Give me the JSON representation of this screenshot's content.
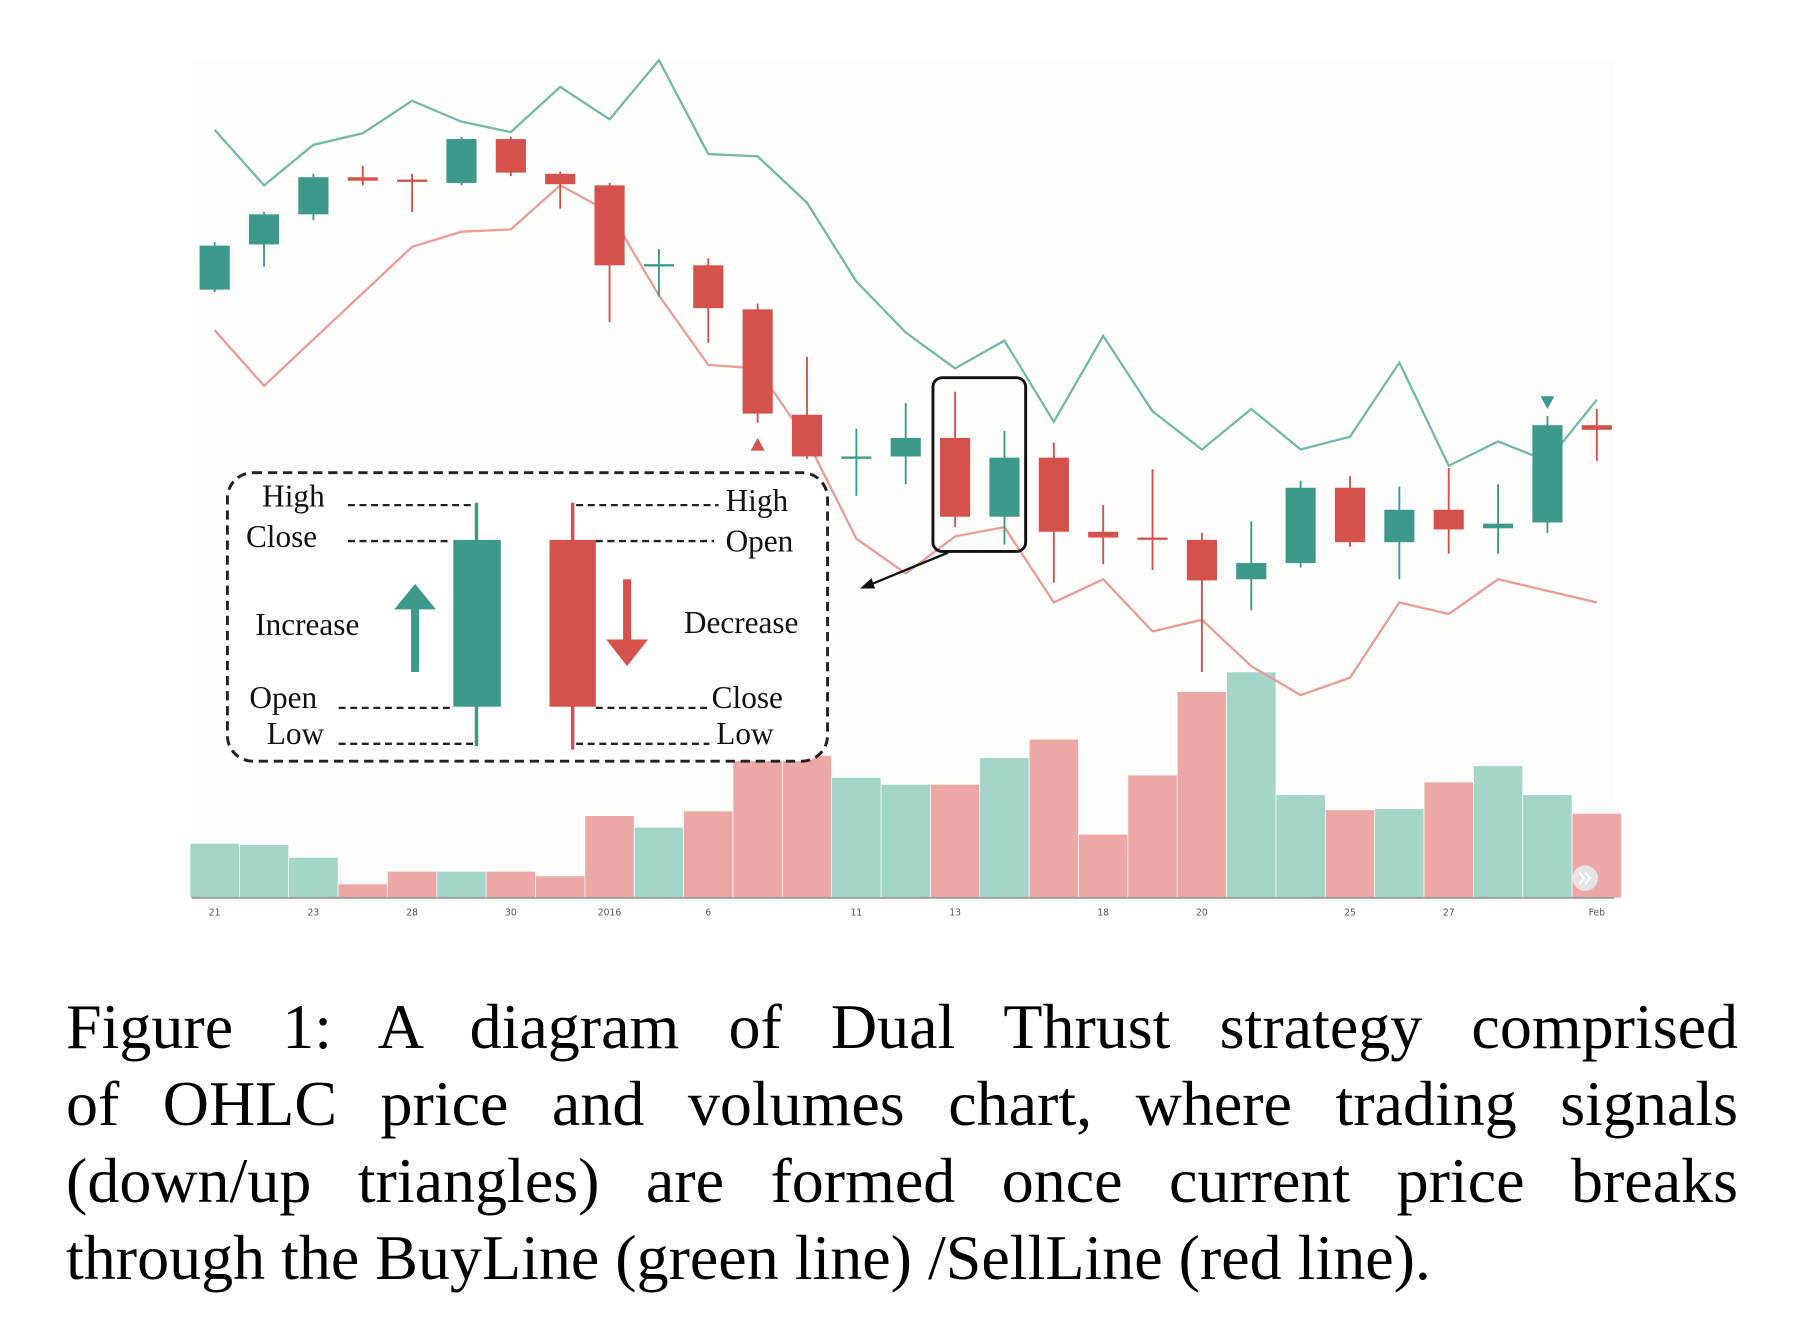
{
  "chart_data": {
    "type": "candlestick",
    "categories": [
      "21",
      null,
      "23",
      null,
      "28",
      null,
      "30",
      null,
      "2016",
      null,
      "6",
      null,
      null,
      "11",
      null,
      "13",
      null,
      null,
      "18",
      null,
      "20",
      null,
      null,
      "25",
      null,
      "27",
      null,
      null,
      "Feb"
    ],
    "open": [
      70,
      77.8,
      83,
      89.4,
      89,
      88.4,
      96,
      90,
      88,
      74,
      74.2,
      66.6,
      48.4,
      40.8,
      41.2,
      44.4,
      30.8,
      41,
      28.2,
      27.2,
      26.8,
      20,
      22.8,
      35.8,
      26.4,
      32,
      28.8,
      29.8,
      46.6
    ],
    "high": [
      78.2,
      83.4,
      90,
      91.4,
      90,
      96.4,
      96.4,
      90.4,
      88.4,
      77,
      75.4,
      67.6,
      58.4,
      46,
      50.4,
      52.4,
      45.6,
      43.6,
      32.8,
      39,
      28,
      30,
      37,
      37.8,
      36,
      39.2,
      36.4,
      48.2,
      49.4
    ],
    "low": [
      69.6,
      74,
      82,
      88,
      83.4,
      88,
      89.6,
      84,
      64.4,
      68.8,
      60.8,
      47,
      40.8,
      34.4,
      36.4,
      29,
      26,
      19.4,
      22.6,
      21.6,
      4,
      14.6,
      22,
      25.6,
      20,
      24.4,
      24.4,
      28,
      40.4
    ],
    "close": [
      77.6,
      83,
      89.4,
      88.8,
      88.6,
      96,
      90.2,
      88.2,
      74.2,
      74.4,
      66.8,
      48.6,
      41.2,
      41.2,
      44.4,
      30.8,
      41,
      28.2,
      27.2,
      26.8,
      19.8,
      22.8,
      35.8,
      26.4,
      32,
      28.6,
      29.6,
      46.6,
      45.8
    ],
    "increase_color": "#3d9a8b",
    "decrease_color": "#d4524b",
    "ylim": [
      0,
      110
    ],
    "buy_line": {
      "color": "#74b8aa",
      "values": [
        97.6,
        88,
        95,
        97,
        102.6,
        99,
        97.2,
        105,
        99.4,
        109.6,
        93.4,
        93,
        85,
        71.4,
        62.6,
        56.4,
        61.2,
        47.2,
        62,
        49,
        42.4,
        49.4,
        42.4,
        44.6,
        57.4,
        39.6,
        43.8,
        40.4,
        51
      ]
    },
    "sell_line": {
      "color": "#eb9d95",
      "values": [
        63,
        53.4,
        61.4,
        69.4,
        77.4,
        80,
        80.4,
        88,
        83.4,
        69,
        57,
        56.4,
        44,
        27,
        21,
        27.4,
        29,
        16,
        20,
        11,
        13,
        5,
        0,
        3,
        16,
        14,
        20,
        18,
        16
      ]
    },
    "signals": [
      {
        "shape": "triangle-up",
        "color": "#d4524b",
        "values": [
          null,
          null,
          null,
          null,
          null,
          null,
          null,
          null,
          null,
          null,
          null,
          43.2,
          null,
          null,
          null,
          null,
          null,
          null,
          null,
          null,
          null,
          null,
          null,
          null,
          null,
          null,
          null,
          null,
          null
        ]
      },
      {
        "shape": "triangle-down",
        "color": "#3d9a8b",
        "values": [
          null,
          null,
          null,
          null,
          null,
          null,
          null,
          null,
          null,
          null,
          null,
          null,
          null,
          null,
          null,
          null,
          null,
          null,
          null,
          null,
          null,
          null,
          null,
          null,
          null,
          null,
          null,
          50.6,
          null
        ]
      }
    ],
    "volume": {
      "ylim": [
        0,
        100
      ],
      "increase_color": "#a3d5c9",
      "decrease_color": "#eca8a4",
      "values": [
        23.5,
        23,
        17.5,
        6,
        11.5,
        11.5,
        11.5,
        9.5,
        35.5,
        30.5,
        37.5,
        62.5,
        61.5,
        52,
        49,
        49,
        60.5,
        68.5,
        27.5,
        53,
        89,
        97.5,
        44.5,
        38,
        38.5,
        50,
        57,
        44.5,
        36.5
      ]
    },
    "annotation": {
      "increase": {
        "high": "High",
        "close": "Close",
        "label": "Increase",
        "open": "Open",
        "low": "Low"
      },
      "decrease": {
        "high": "High",
        "open": "Open",
        "label": "Decrease",
        "close": "Close",
        "low": "Low"
      }
    }
  },
  "caption_lines": [
    "Figure 1: A diagram of Dual Thrust strategy comprised",
    "of OHLC price and volumes chart, where trading signals",
    "(down/up triangles) are formed once current price breaks",
    "through the BuyLine (green line) /SellLine (red line)."
  ]
}
